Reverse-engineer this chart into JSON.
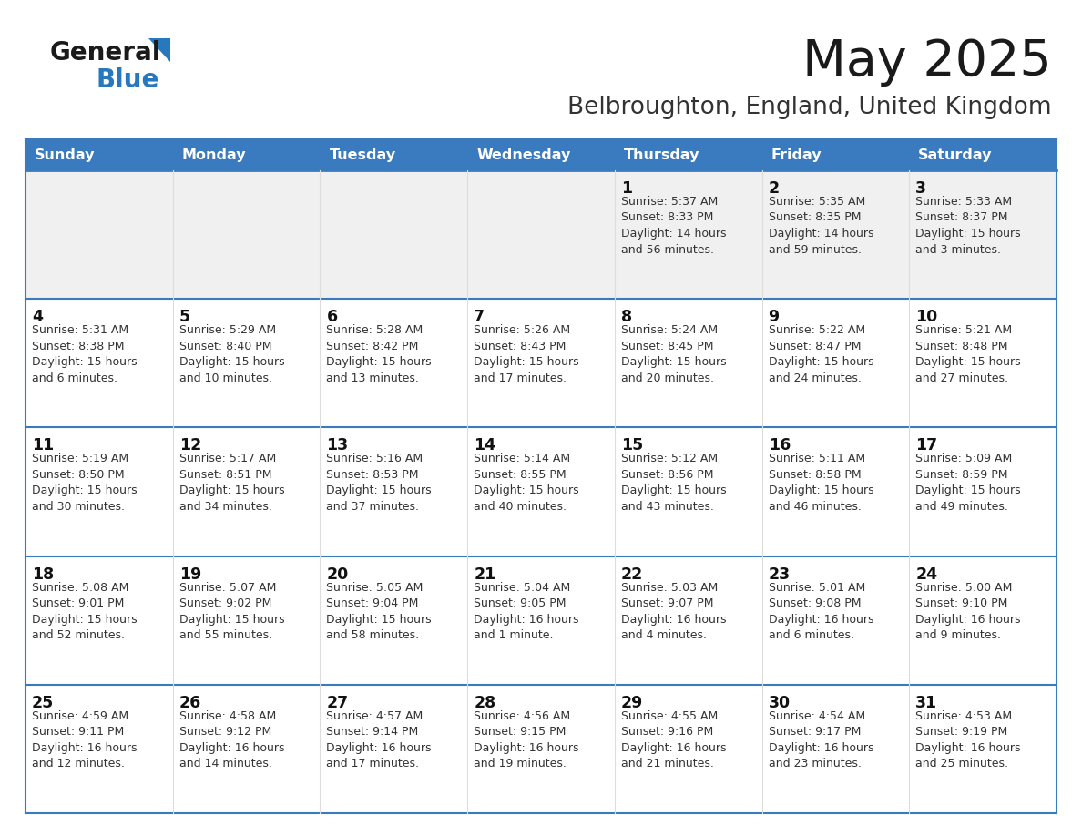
{
  "title": "May 2025",
  "subtitle": "Belbroughton, England, United Kingdom",
  "days_of_week": [
    "Sunday",
    "Monday",
    "Tuesday",
    "Wednesday",
    "Thursday",
    "Friday",
    "Saturday"
  ],
  "header_bg": "#3A7BBF",
  "header_text": "#FFFFFF",
  "row_bg": "#FFFFFF",
  "first_row_bg": "#F0F0F0",
  "cell_text_color": "#333333",
  "day_num_color": "#111111",
  "border_color": "#3A7BBF",
  "row_divider_color": "#3A7BBF",
  "col_divider_color": "#DDDDDD",
  "title_color": "#1a1a1a",
  "subtitle_color": "#333333",
  "logo_general_color": "#1a1a1a",
  "logo_blue_color": "#2878BE",
  "calendar_data": [
    [
      {
        "day": null,
        "info": null
      },
      {
        "day": null,
        "info": null
      },
      {
        "day": null,
        "info": null
      },
      {
        "day": null,
        "info": null
      },
      {
        "day": 1,
        "info": "Sunrise: 5:37 AM\nSunset: 8:33 PM\nDaylight: 14 hours\nand 56 minutes."
      },
      {
        "day": 2,
        "info": "Sunrise: 5:35 AM\nSunset: 8:35 PM\nDaylight: 14 hours\nand 59 minutes."
      },
      {
        "day": 3,
        "info": "Sunrise: 5:33 AM\nSunset: 8:37 PM\nDaylight: 15 hours\nand 3 minutes."
      }
    ],
    [
      {
        "day": 4,
        "info": "Sunrise: 5:31 AM\nSunset: 8:38 PM\nDaylight: 15 hours\nand 6 minutes."
      },
      {
        "day": 5,
        "info": "Sunrise: 5:29 AM\nSunset: 8:40 PM\nDaylight: 15 hours\nand 10 minutes."
      },
      {
        "day": 6,
        "info": "Sunrise: 5:28 AM\nSunset: 8:42 PM\nDaylight: 15 hours\nand 13 minutes."
      },
      {
        "day": 7,
        "info": "Sunrise: 5:26 AM\nSunset: 8:43 PM\nDaylight: 15 hours\nand 17 minutes."
      },
      {
        "day": 8,
        "info": "Sunrise: 5:24 AM\nSunset: 8:45 PM\nDaylight: 15 hours\nand 20 minutes."
      },
      {
        "day": 9,
        "info": "Sunrise: 5:22 AM\nSunset: 8:47 PM\nDaylight: 15 hours\nand 24 minutes."
      },
      {
        "day": 10,
        "info": "Sunrise: 5:21 AM\nSunset: 8:48 PM\nDaylight: 15 hours\nand 27 minutes."
      }
    ],
    [
      {
        "day": 11,
        "info": "Sunrise: 5:19 AM\nSunset: 8:50 PM\nDaylight: 15 hours\nand 30 minutes."
      },
      {
        "day": 12,
        "info": "Sunrise: 5:17 AM\nSunset: 8:51 PM\nDaylight: 15 hours\nand 34 minutes."
      },
      {
        "day": 13,
        "info": "Sunrise: 5:16 AM\nSunset: 8:53 PM\nDaylight: 15 hours\nand 37 minutes."
      },
      {
        "day": 14,
        "info": "Sunrise: 5:14 AM\nSunset: 8:55 PM\nDaylight: 15 hours\nand 40 minutes."
      },
      {
        "day": 15,
        "info": "Sunrise: 5:12 AM\nSunset: 8:56 PM\nDaylight: 15 hours\nand 43 minutes."
      },
      {
        "day": 16,
        "info": "Sunrise: 5:11 AM\nSunset: 8:58 PM\nDaylight: 15 hours\nand 46 minutes."
      },
      {
        "day": 17,
        "info": "Sunrise: 5:09 AM\nSunset: 8:59 PM\nDaylight: 15 hours\nand 49 minutes."
      }
    ],
    [
      {
        "day": 18,
        "info": "Sunrise: 5:08 AM\nSunset: 9:01 PM\nDaylight: 15 hours\nand 52 minutes."
      },
      {
        "day": 19,
        "info": "Sunrise: 5:07 AM\nSunset: 9:02 PM\nDaylight: 15 hours\nand 55 minutes."
      },
      {
        "day": 20,
        "info": "Sunrise: 5:05 AM\nSunset: 9:04 PM\nDaylight: 15 hours\nand 58 minutes."
      },
      {
        "day": 21,
        "info": "Sunrise: 5:04 AM\nSunset: 9:05 PM\nDaylight: 16 hours\nand 1 minute."
      },
      {
        "day": 22,
        "info": "Sunrise: 5:03 AM\nSunset: 9:07 PM\nDaylight: 16 hours\nand 4 minutes."
      },
      {
        "day": 23,
        "info": "Sunrise: 5:01 AM\nSunset: 9:08 PM\nDaylight: 16 hours\nand 6 minutes."
      },
      {
        "day": 24,
        "info": "Sunrise: 5:00 AM\nSunset: 9:10 PM\nDaylight: 16 hours\nand 9 minutes."
      }
    ],
    [
      {
        "day": 25,
        "info": "Sunrise: 4:59 AM\nSunset: 9:11 PM\nDaylight: 16 hours\nand 12 minutes."
      },
      {
        "day": 26,
        "info": "Sunrise: 4:58 AM\nSunset: 9:12 PM\nDaylight: 16 hours\nand 14 minutes."
      },
      {
        "day": 27,
        "info": "Sunrise: 4:57 AM\nSunset: 9:14 PM\nDaylight: 16 hours\nand 17 minutes."
      },
      {
        "day": 28,
        "info": "Sunrise: 4:56 AM\nSunset: 9:15 PM\nDaylight: 16 hours\nand 19 minutes."
      },
      {
        "day": 29,
        "info": "Sunrise: 4:55 AM\nSunset: 9:16 PM\nDaylight: 16 hours\nand 21 minutes."
      },
      {
        "day": 30,
        "info": "Sunrise: 4:54 AM\nSunset: 9:17 PM\nDaylight: 16 hours\nand 23 minutes."
      },
      {
        "day": 31,
        "info": "Sunrise: 4:53 AM\nSunset: 9:19 PM\nDaylight: 16 hours\nand 25 minutes."
      }
    ]
  ]
}
